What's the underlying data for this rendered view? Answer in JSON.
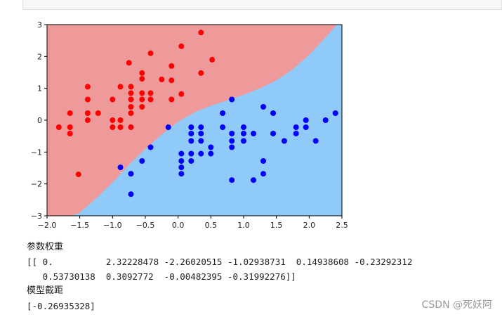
{
  "chart_data": {
    "type": "scatter",
    "background": "decision-regions",
    "xlim": [
      -2.0,
      2.5
    ],
    "ylim": [
      -3,
      3
    ],
    "xticks": [
      "−2.0",
      "−1.5",
      "−1.0",
      "−0.5",
      "0.0",
      "0.5",
      "1.0",
      "1.5",
      "2.0",
      "2.5"
    ],
    "yticks": [
      "−3",
      "−2",
      "−1",
      "0",
      "1",
      "2",
      "3"
    ],
    "region_colors": {
      "red": "#ef9a9a",
      "blue": "#90caf9"
    },
    "grid": false,
    "series": [
      {
        "color": "#ff0000",
        "points": [
          [
            0.35,
            2.75
          ],
          [
            -0.42,
            2.1
          ],
          [
            0.05,
            2.32
          ],
          [
            0.52,
            1.9
          ],
          [
            -0.75,
            1.8
          ],
          [
            -0.1,
            1.7
          ],
          [
            -0.55,
            1.48
          ],
          [
            0.35,
            1.48
          ],
          [
            -0.55,
            1.3
          ],
          [
            -0.25,
            1.28
          ],
          [
            -0.1,
            1.25
          ],
          [
            -1.38,
            1.05
          ],
          [
            -0.88,
            1.05
          ],
          [
            -0.72,
            1.05
          ],
          [
            -0.72,
            0.85
          ],
          [
            -0.55,
            0.85
          ],
          [
            -0.42,
            0.85
          ],
          [
            0.05,
            0.82
          ],
          [
            -1.38,
            0.65
          ],
          [
            -1.0,
            0.65
          ],
          [
            -0.72,
            0.65
          ],
          [
            -0.55,
            0.65
          ],
          [
            -0.42,
            0.65
          ],
          [
            -0.1,
            0.65
          ],
          [
            -0.72,
            0.42
          ],
          [
            -0.55,
            0.42
          ],
          [
            -1.65,
            0.22
          ],
          [
            -1.38,
            0.22
          ],
          [
            -1.22,
            0.22
          ],
          [
            -0.72,
            0.22
          ],
          [
            -1.38,
            0.0
          ],
          [
            -1.0,
            0.0
          ],
          [
            -0.88,
            0.0
          ],
          [
            -1.82,
            -0.22
          ],
          [
            -1.65,
            -0.22
          ],
          [
            -1.0,
            -0.22
          ],
          [
            -0.88,
            -0.22
          ],
          [
            -0.72,
            -0.22
          ],
          [
            -1.65,
            -0.42
          ],
          [
            -1.52,
            -1.7
          ]
        ]
      },
      {
        "color": "#0000ff",
        "points": [
          [
            0.82,
            0.65
          ],
          [
            1.3,
            0.42
          ],
          [
            0.68,
            0.22
          ],
          [
            1.45,
            0.22
          ],
          [
            2.4,
            0.22
          ],
          [
            1.95,
            0.0
          ],
          [
            2.25,
            0.0
          ],
          [
            -0.15,
            -0.22
          ],
          [
            0.2,
            -0.22
          ],
          [
            0.35,
            -0.22
          ],
          [
            0.68,
            -0.22
          ],
          [
            1.0,
            -0.22
          ],
          [
            1.8,
            -0.22
          ],
          [
            1.95,
            -0.22
          ],
          [
            0.2,
            -0.42
          ],
          [
            0.35,
            -0.42
          ],
          [
            0.82,
            -0.42
          ],
          [
            1.0,
            -0.42
          ],
          [
            1.15,
            -0.42
          ],
          [
            1.45,
            -0.42
          ],
          [
            1.8,
            -0.42
          ],
          [
            0.2,
            -0.65
          ],
          [
            0.35,
            -0.65
          ],
          [
            0.82,
            -0.65
          ],
          [
            1.0,
            -0.65
          ],
          [
            1.62,
            -0.65
          ],
          [
            2.1,
            -0.65
          ],
          [
            -0.42,
            -0.85
          ],
          [
            0.5,
            -0.85
          ],
          [
            0.82,
            -0.85
          ],
          [
            0.05,
            -1.05
          ],
          [
            0.35,
            -1.05
          ],
          [
            0.5,
            -1.05
          ],
          [
            0.2,
            -1.05
          ],
          [
            -0.55,
            -1.28
          ],
          [
            0.05,
            -1.28
          ],
          [
            0.2,
            -1.28
          ],
          [
            1.3,
            -1.28
          ],
          [
            -0.88,
            -1.48
          ],
          [
            0.05,
            -1.48
          ],
          [
            0.05,
            -1.68
          ],
          [
            -0.72,
            -1.68
          ],
          [
            1.3,
            -1.68
          ],
          [
            0.82,
            -1.88
          ],
          [
            1.15,
            -1.88
          ],
          [
            -0.72,
            -2.32
          ]
        ]
      }
    ]
  },
  "text": {
    "weights_label": "参数权重",
    "weights_line1": "[[ 0.          2.32228478 -2.26020515 -1.02938731  0.14938608 -0.23292312",
    "weights_line2": "   0.53730138  0.3092772  -0.00482395 -0.31992276]]",
    "intercept_label": "模型截距",
    "intercept_value": "[-0.26935328]",
    "watermark": "CSDN @死妖阿"
  }
}
